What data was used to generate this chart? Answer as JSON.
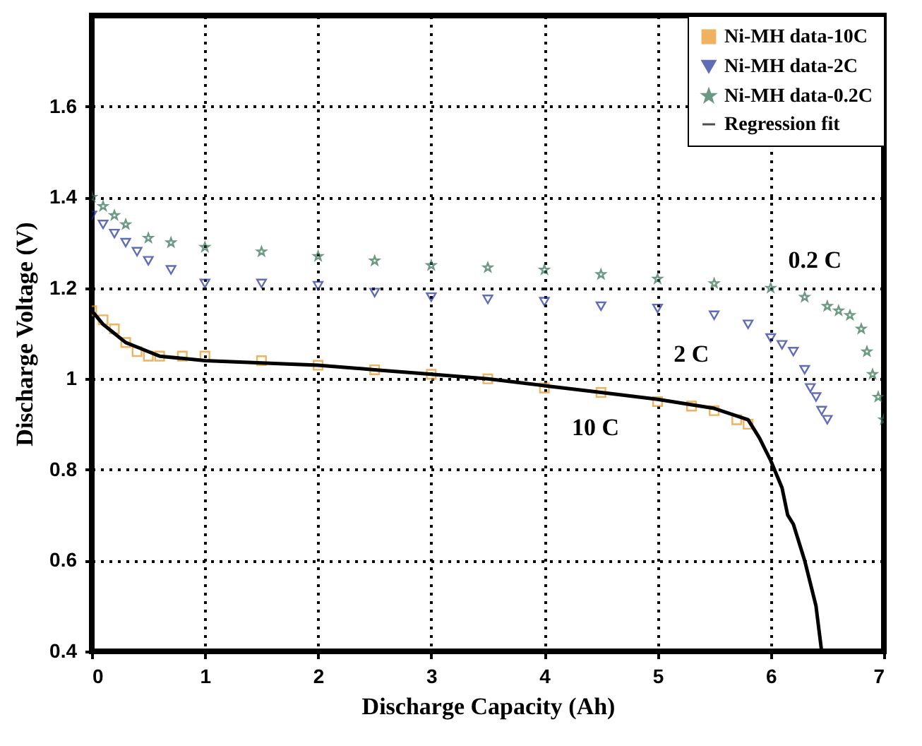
{
  "chart_data": {
    "type": "scatter",
    "xlabel": "Discharge Capacity (Ah)",
    "ylabel": "Discharge Voltage (V)",
    "xlim": [
      0,
      7
    ],
    "xticks": [
      0,
      1,
      2,
      3,
      4,
      5,
      6,
      7
    ],
    "ylim": [
      0.4,
      1.8
    ],
    "yticks": [
      0.4,
      0.6,
      0.8,
      1,
      1.2,
      1.4,
      1.6
    ],
    "grid": true,
    "legend": "top right",
    "series": [
      {
        "name": "Ni-MH data-10C",
        "marker": "square",
        "color": "#e8921e",
        "x": [
          0,
          0.1,
          0.2,
          0.3,
          0.4,
          0.5,
          0.6,
          0.8,
          1,
          1.5,
          2,
          2.5,
          3,
          3.5,
          4,
          4.5,
          5,
          5.3,
          5.5,
          5.7,
          5.8
        ],
        "values": [
          1.15,
          1.13,
          1.11,
          1.08,
          1.06,
          1.05,
          1.05,
          1.05,
          1.05,
          1.04,
          1.03,
          1.02,
          1.01,
          1.0,
          0.98,
          0.97,
          0.95,
          0.94,
          0.93,
          0.91,
          0.9
        ]
      },
      {
        "name": "Ni-MH data-2C",
        "marker": "triangle-down",
        "color": "#1f2f9a",
        "x": [
          0,
          0.1,
          0.2,
          0.3,
          0.4,
          0.5,
          0.7,
          1,
          1.5,
          2,
          2.5,
          3,
          3.5,
          4,
          4.5,
          5,
          5.5,
          5.8,
          6,
          6.1,
          6.2,
          6.3,
          6.35,
          6.4,
          6.45,
          6.5
        ],
        "values": [
          1.36,
          1.34,
          1.32,
          1.3,
          1.28,
          1.26,
          1.24,
          1.21,
          1.21,
          1.205,
          1.19,
          1.18,
          1.175,
          1.17,
          1.16,
          1.155,
          1.14,
          1.12,
          1.09,
          1.075,
          1.06,
          1.02,
          0.98,
          0.96,
          0.93,
          0.91
        ]
      },
      {
        "name": "Ni-MH data-0.2C",
        "marker": "star",
        "color": "#2e6e4e",
        "x": [
          0,
          0.1,
          0.2,
          0.3,
          0.5,
          0.7,
          1,
          1.5,
          2,
          2.5,
          3,
          3.5,
          4,
          4.5,
          5,
          5.5,
          6,
          6.3,
          6.5,
          6.6,
          6.7,
          6.8,
          6.85,
          6.9,
          6.95,
          7
        ],
        "values": [
          1.4,
          1.38,
          1.36,
          1.34,
          1.31,
          1.3,
          1.29,
          1.28,
          1.27,
          1.26,
          1.25,
          1.245,
          1.24,
          1.23,
          1.22,
          1.21,
          1.2,
          1.18,
          1.16,
          1.15,
          1.14,
          1.11,
          1.06,
          1.01,
          0.96,
          0.91
        ]
      },
      {
        "name": "Regression fit",
        "type": "line",
        "color": "#000000",
        "x": [
          0,
          0.1,
          0.2,
          0.3,
          0.4,
          0.5,
          0.6,
          0.8,
          1,
          1.5,
          2,
          2.5,
          3,
          3.5,
          4,
          4.5,
          5,
          5.5,
          5.8,
          5.9,
          6,
          6.1,
          6.15,
          6.2,
          6.3,
          6.4,
          6.45
        ],
        "values": [
          1.15,
          1.12,
          1.1,
          1.08,
          1.07,
          1.06,
          1.05,
          1.045,
          1.04,
          1.035,
          1.03,
          1.02,
          1.01,
          1.0,
          0.985,
          0.97,
          0.955,
          0.935,
          0.91,
          0.87,
          0.82,
          0.76,
          0.7,
          0.68,
          0.6,
          0.5,
          0.4
        ]
      }
    ],
    "annotations": [
      "0.2 C",
      "2 C",
      "10 C"
    ]
  }
}
